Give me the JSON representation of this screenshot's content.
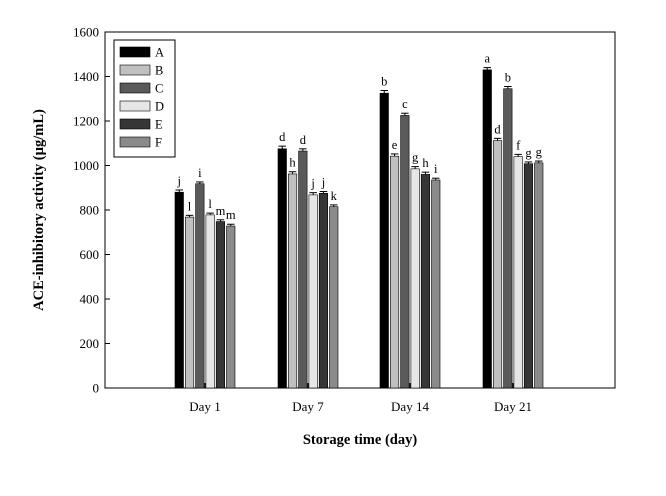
{
  "chart_data": {
    "type": "bar",
    "title": "",
    "xlabel": "Storage time (day)",
    "ylabel": "ACE-inhibitory activity (µg/mL)",
    "ylim": [
      0,
      1600
    ],
    "yticks": [
      0,
      200,
      400,
      600,
      800,
      1000,
      1200,
      1400,
      1600
    ],
    "categories": [
      "Day 1",
      "Day 7",
      "Day 14",
      "Day 21"
    ],
    "legend_position": "top-left",
    "series": [
      {
        "name": "A",
        "color": "#000000",
        "values": [
          880,
          1075,
          1325,
          1430
        ],
        "errors": [
          10,
          12,
          12,
          10
        ],
        "labels": [
          "j",
          "d",
          "b",
          "a"
        ]
      },
      {
        "name": "B",
        "color": "#c0c0c0",
        "values": [
          768,
          962,
          1042,
          1112
        ],
        "errors": [
          8,
          10,
          10,
          10
        ],
        "labels": [
          "l",
          "h",
          "e",
          "d"
        ]
      },
      {
        "name": "C",
        "color": "#5a5a5a",
        "values": [
          918,
          1065,
          1225,
          1345
        ],
        "errors": [
          8,
          10,
          10,
          10
        ],
        "labels": [
          "i",
          "d",
          "c",
          "b"
        ]
      },
      {
        "name": "D",
        "color": "#e6e6e6",
        "values": [
          778,
          868,
          985,
          1040
        ],
        "errors": [
          8,
          10,
          10,
          10
        ],
        "labels": [
          "l",
          "j",
          "g",
          "f"
        ]
      },
      {
        "name": "E",
        "color": "#363636",
        "values": [
          748,
          875,
          960,
          1008
        ],
        "errors": [
          8,
          8,
          10,
          8
        ],
        "labels": [
          "m",
          "j",
          "h",
          "g"
        ]
      },
      {
        "name": "F",
        "color": "#8a8a8a",
        "values": [
          728,
          815,
          935,
          1012
        ],
        "errors": [
          8,
          8,
          8,
          8
        ],
        "labels": [
          "m",
          "k",
          "i",
          "g"
        ]
      }
    ]
  }
}
